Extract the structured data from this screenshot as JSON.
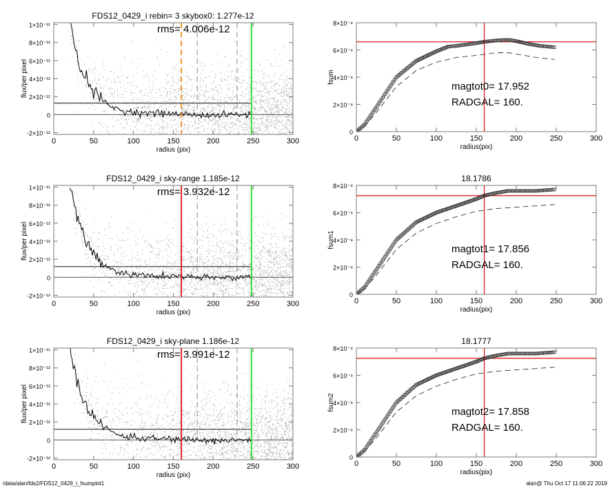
{
  "footer": {
    "left": "/data/alan/fds2/FDS12_0429_i_fsumplot1",
    "right": "alan@  Thu Oct 17 11:06:22 2019"
  },
  "colors": {
    "scatter": "#a8a8a8",
    "profile": "#000000",
    "radgal_orange": "#f0962a",
    "radgal_red": "#e02020",
    "outer_green": "#33dd33",
    "sum_line": "#e02020"
  },
  "chart_data": [
    {
      "type": "scatter",
      "panel": "left-1",
      "title": "FDS12_0429_i rebin= 3    skybox0:  1.277e-12",
      "annotation": "rms= 4.006e-12",
      "xlabel": "radius (pix)",
      "ylabel": "flux/per pixel",
      "xlim": [
        0,
        300
      ],
      "ylim": [
        -2.2e-12,
        1.02e-11
      ],
      "xticks": [
        "0",
        "50",
        "100",
        "150",
        "200",
        "250",
        "300"
      ],
      "yticks": [
        {
          "v": 1e-11,
          "l": "1×10⁻¹¹"
        },
        {
          "v": 8e-12,
          "l": "8×10⁻¹²"
        },
        {
          "v": 6e-12,
          "l": "6×10⁻¹²"
        },
        {
          "v": 4e-12,
          "l": "4×10⁻¹²"
        },
        {
          "v": 2e-12,
          "l": "2×10⁻¹²"
        },
        {
          "v": 0,
          "l": "0"
        },
        {
          "v": -2e-12,
          "l": "-2×10⁻¹²"
        }
      ],
      "sky_level": 1.277e-12,
      "radgal": 160,
      "radgal_style": "orange-dashed",
      "outer_radius": 248,
      "extra_dashed_radii": [
        180,
        230
      ],
      "profile": {
        "x": [
          20,
          25,
          30,
          35,
          40,
          45,
          50,
          60,
          70,
          80,
          90,
          100,
          125,
          150,
          175,
          200,
          225,
          248
        ],
        "y": [
          1e-11,
          8.3e-12,
          6.5e-12,
          5e-12,
          4e-12,
          3.3e-12,
          2.6e-12,
          1.6e-12,
          1e-12,
          6e-13,
          4e-13,
          2.5e-13,
          1.5e-13,
          1e-13,
          0,
          -1e-13,
          0,
          0
        ]
      }
    },
    {
      "type": "scatter",
      "panel": "left-2",
      "title": "FDS12_0429_i sky-range  1.185e-12",
      "annotation": "rms= 3.932e-12",
      "xlabel": "radius (pix)",
      "ylabel": "flux/per pixel",
      "xlim": [
        0,
        300
      ],
      "ylim": [
        -2.2e-12,
        1.02e-11
      ],
      "xticks": [
        "0",
        "50",
        "100",
        "150",
        "200",
        "250",
        "300"
      ],
      "yticks": [
        {
          "v": 1e-11,
          "l": "1×10⁻¹¹"
        },
        {
          "v": 8e-12,
          "l": "8×10⁻¹²"
        },
        {
          "v": 6e-12,
          "l": "6×10⁻¹²"
        },
        {
          "v": 4e-12,
          "l": "4×10⁻¹²"
        },
        {
          "v": 2e-12,
          "l": "2×10⁻¹²"
        },
        {
          "v": 0,
          "l": "0"
        },
        {
          "v": -2e-12,
          "l": "-2×10⁻¹²"
        }
      ],
      "sky_level": 1.185e-12,
      "radgal": 160,
      "radgal_style": "red-solid",
      "outer_radius": 248,
      "extra_dashed_radii": [
        180,
        230
      ],
      "profile": {
        "x": [
          20,
          25,
          30,
          35,
          40,
          45,
          50,
          60,
          70,
          80,
          90,
          100,
          125,
          150,
          175,
          200,
          225,
          248
        ],
        "y": [
          1e-11,
          8.3e-12,
          6.5e-12,
          5e-12,
          4e-12,
          3.3e-12,
          2.6e-12,
          1.6e-12,
          1e-12,
          6e-13,
          4e-13,
          2.5e-13,
          1.5e-13,
          1e-13,
          0,
          -1e-13,
          0,
          0
        ]
      }
    },
    {
      "type": "scatter",
      "panel": "left-3",
      "title": "FDS12_0429_i sky-plane  1.186e-12",
      "annotation": "rms= 3.991e-12",
      "xlabel": "radius (pix)",
      "ylabel": "flux/per pixel",
      "xlim": [
        0,
        300
      ],
      "ylim": [
        -2.2e-12,
        1.02e-11
      ],
      "xticks": [
        "0",
        "50",
        "100",
        "150",
        "200",
        "250",
        "300"
      ],
      "yticks": [
        {
          "v": 1e-11,
          "l": "1×10⁻¹¹"
        },
        {
          "v": 8e-12,
          "l": "8×10⁻¹²"
        },
        {
          "v": 6e-12,
          "l": "6×10⁻¹²"
        },
        {
          "v": 4e-12,
          "l": "4×10⁻¹²"
        },
        {
          "v": 2e-12,
          "l": "2×10⁻¹²"
        },
        {
          "v": 0,
          "l": "0"
        },
        {
          "v": -2e-12,
          "l": "-2×10⁻¹²"
        }
      ],
      "sky_level": 1.186e-12,
      "radgal": 160,
      "radgal_style": "red-solid",
      "outer_radius": 248,
      "extra_dashed_radii": [
        180,
        230
      ],
      "profile": {
        "x": [
          20,
          25,
          30,
          35,
          40,
          45,
          50,
          60,
          70,
          80,
          90,
          100,
          125,
          150,
          175,
          200,
          225,
          248
        ],
        "y": [
          1e-11,
          8.3e-12,
          6.5e-12,
          5e-12,
          4e-12,
          3.3e-12,
          2.6e-12,
          1.6e-12,
          1e-12,
          6e-13,
          4e-13,
          2.5e-13,
          1.5e-13,
          1e-13,
          0,
          -1e-13,
          0,
          0
        ]
      }
    },
    {
      "type": "line",
      "panel": "right-1",
      "title": "",
      "xlabel": "radius(pix)",
      "ylabel": "fsum",
      "xlim": [
        0,
        300
      ],
      "ylim": [
        0,
        8e-08
      ],
      "xticks": [
        "0",
        "50",
        "100",
        "150",
        "200",
        "250",
        "300"
      ],
      "yticks": [
        {
          "v": 8e-08,
          "l": "8×10⁻⁸"
        },
        {
          "v": 6e-08,
          "l": "6×10⁻⁸"
        },
        {
          "v": 4e-08,
          "l": "4×10⁻⁸"
        },
        {
          "v": 2e-08,
          "l": "2×10⁻⁸"
        },
        {
          "v": 0,
          "l": "0"
        }
      ],
      "annotations": [
        "magtot0=  17.952",
        "RADGAL=    160."
      ],
      "hline": 6.6e-08,
      "vline": 160,
      "series": [
        {
          "style": "symbols",
          "x": [
            0,
            10,
            25,
            50,
            75,
            100,
            115,
            125,
            150,
            160,
            175,
            190,
            200,
            215,
            230,
            248
          ],
          "y": [
            0,
            5e-09,
            1.8e-08,
            4e-08,
            5.2e-08,
            5.9e-08,
            6.25e-08,
            6.3e-08,
            6.5e-08,
            6.6e-08,
            6.7e-08,
            6.75e-08,
            6.65e-08,
            6.45e-08,
            6.3e-08,
            6.2e-08
          ]
        },
        {
          "style": "dashed",
          "x": [
            0,
            10,
            25,
            50,
            75,
            100,
            125,
            150,
            175,
            190,
            200,
            225,
            248
          ],
          "y": [
            0,
            4e-09,
            1.4e-08,
            3.3e-08,
            4.5e-08,
            5.1e-08,
            5.45e-08,
            5.6e-08,
            5.8e-08,
            5.8e-08,
            5.7e-08,
            5.45e-08,
            5.3e-08
          ]
        }
      ]
    },
    {
      "type": "line",
      "panel": "right-2",
      "title": "18.1786",
      "xlabel": "radius(pix)",
      "ylabel": "fsum1",
      "xlim": [
        0,
        300
      ],
      "ylim": [
        0,
        8e-08
      ],
      "xticks": [
        "0",
        "50",
        "100",
        "150",
        "200",
        "250",
        "300"
      ],
      "yticks": [
        {
          "v": 8e-08,
          "l": "8×10⁻⁸"
        },
        {
          "v": 6e-08,
          "l": "6×10⁻⁸"
        },
        {
          "v": 4e-08,
          "l": "4×10⁻⁸"
        },
        {
          "v": 2e-08,
          "l": "2×10⁻⁸"
        },
        {
          "v": 0,
          "l": "0"
        }
      ],
      "annotations": [
        "magtot1=  17.856",
        "RADGAL=    160."
      ],
      "hline": 7.25e-08,
      "vline": 160,
      "series": [
        {
          "style": "symbols",
          "x": [
            0,
            10,
            25,
            50,
            75,
            100,
            125,
            150,
            160,
            175,
            190,
            200,
            225,
            248
          ],
          "y": [
            0,
            5e-09,
            1.8e-08,
            4e-08,
            5.3e-08,
            6e-08,
            6.5e-08,
            7e-08,
            7.25e-08,
            7.45e-08,
            7.6e-08,
            7.6e-08,
            7.6e-08,
            7.7e-08
          ]
        },
        {
          "style": "dashed",
          "x": [
            0,
            10,
            25,
            50,
            75,
            100,
            125,
            150,
            175,
            200,
            225,
            248
          ],
          "y": [
            0,
            4e-09,
            1.4e-08,
            3.3e-08,
            4.5e-08,
            5.2e-08,
            5.7e-08,
            6.1e-08,
            6.3e-08,
            6.4e-08,
            6.5e-08,
            6.6e-08
          ]
        }
      ]
    },
    {
      "type": "line",
      "panel": "right-3",
      "title": "18.1777",
      "xlabel": "radius(pix)",
      "ylabel": "fsum2",
      "xlim": [
        0,
        300
      ],
      "ylim": [
        0,
        8e-08
      ],
      "xticks": [
        "0",
        "50",
        "100",
        "150",
        "200",
        "250",
        "300"
      ],
      "yticks": [
        {
          "v": 8e-08,
          "l": "8×10⁻⁸"
        },
        {
          "v": 6e-08,
          "l": "6×10⁻⁸"
        },
        {
          "v": 4e-08,
          "l": "4×10⁻⁸"
        },
        {
          "v": 2e-08,
          "l": "2×10⁻⁸"
        },
        {
          "v": 0,
          "l": "0"
        }
      ],
      "annotations": [
        "magtot2=  17.858",
        "RADGAL=    160."
      ],
      "hline": 7.25e-08,
      "vline": 160,
      "series": [
        {
          "style": "symbols",
          "x": [
            0,
            10,
            25,
            50,
            75,
            100,
            125,
            150,
            160,
            175,
            190,
            200,
            225,
            248
          ],
          "y": [
            0,
            5e-09,
            1.8e-08,
            4e-08,
            5.3e-08,
            6e-08,
            6.5e-08,
            7e-08,
            7.25e-08,
            7.45e-08,
            7.6e-08,
            7.6e-08,
            7.6e-08,
            7.7e-08
          ]
        },
        {
          "style": "dashed",
          "x": [
            0,
            10,
            25,
            50,
            75,
            100,
            125,
            150,
            175,
            200,
            225,
            248
          ],
          "y": [
            0,
            4e-09,
            1.4e-08,
            3.3e-08,
            4.5e-08,
            5.2e-08,
            5.7e-08,
            6.1e-08,
            6.3e-08,
            6.4e-08,
            6.5e-08,
            6.6e-08
          ]
        }
      ]
    }
  ]
}
